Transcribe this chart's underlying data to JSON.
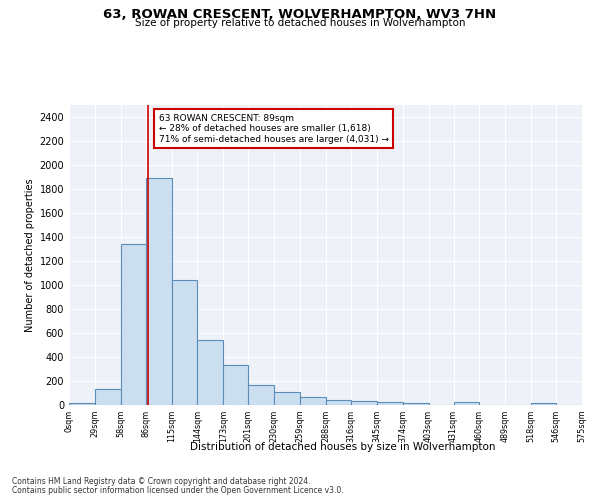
{
  "title": "63, ROWAN CRESCENT, WOLVERHAMPTON, WV3 7HN",
  "subtitle": "Size of property relative to detached houses in Wolverhampton",
  "xlabel": "Distribution of detached houses by size in Wolverhampton",
  "ylabel": "Number of detached properties",
  "footer1": "Contains HM Land Registry data © Crown copyright and database right 2024.",
  "footer2": "Contains public sector information licensed under the Open Government Licence v3.0.",
  "annotation_line1": "63 ROWAN CRESCENT: 89sqm",
  "annotation_line2": "← 28% of detached houses are smaller (1,618)",
  "annotation_line3": "71% of semi-detached houses are larger (4,031) →",
  "property_value": 89,
  "bar_edge_color": "#5b8db8",
  "bar_face_color": "#ccdff0",
  "bar_linewidth": 0.8,
  "vline_color": "#cc0000",
  "vline_linewidth": 1.2,
  "annotation_box_color": "#cc0000",
  "background_color": "#eef2f8",
  "grid_color": "#ffffff",
  "bin_edges": [
    0,
    29,
    58,
    86,
    115,
    144,
    173,
    201,
    230,
    259,
    288,
    316,
    345,
    374,
    403,
    431,
    460,
    489,
    518,
    546,
    575
  ],
  "bin_labels": [
    "0sqm",
    "29sqm",
    "58sqm",
    "86sqm",
    "115sqm",
    "144sqm",
    "173sqm",
    "201sqm",
    "230sqm",
    "259sqm",
    "288sqm",
    "316sqm",
    "345sqm",
    "374sqm",
    "403sqm",
    "431sqm",
    "460sqm",
    "489sqm",
    "518sqm",
    "546sqm",
    "575sqm"
  ],
  "bar_heights": [
    15,
    130,
    1340,
    1890,
    1040,
    540,
    335,
    165,
    110,
    65,
    40,
    30,
    25,
    15,
    0,
    25,
    0,
    0,
    15,
    0
  ],
  "ylim": [
    0,
    2500
  ],
  "yticks": [
    0,
    200,
    400,
    600,
    800,
    1000,
    1200,
    1400,
    1600,
    1800,
    2000,
    2200,
    2400
  ]
}
